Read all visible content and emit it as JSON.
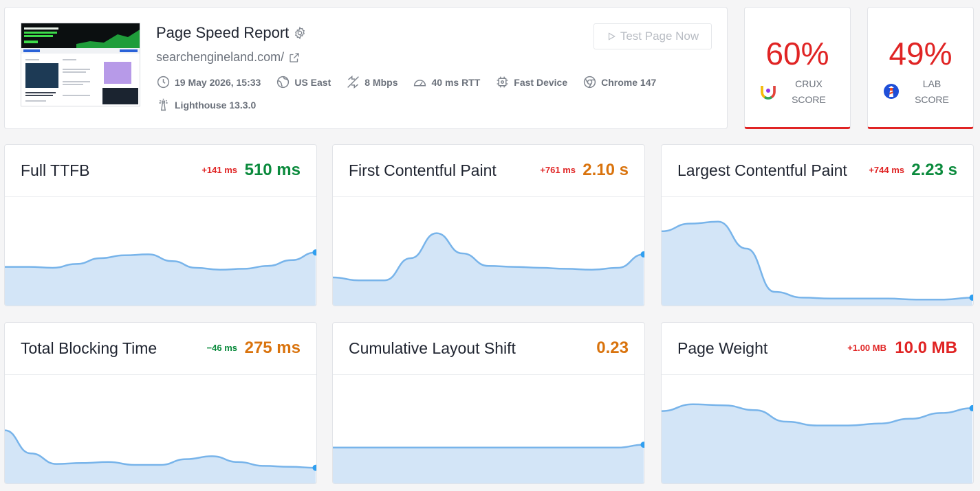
{
  "report": {
    "title": "Page Speed Report",
    "url": "searchengineland.com/",
    "test_button_label": "Test Page Now",
    "meta": [
      {
        "icon": "clock-icon",
        "text": "19 May 2026, 15:33"
      },
      {
        "icon": "globe-icon",
        "text": "US East"
      },
      {
        "icon": "bandwidth-icon",
        "text": "8 Mbps"
      },
      {
        "icon": "speedometer-icon",
        "text": "40 ms RTT"
      },
      {
        "icon": "cpu-icon",
        "text": "Fast Device"
      },
      {
        "icon": "chrome-icon",
        "text": "Chrome 147"
      },
      {
        "icon": "lighthouse-icon",
        "text": "Lighthouse 13.3.0"
      }
    ]
  },
  "scores": {
    "crux": {
      "value": "60%",
      "label_line1": "CRUX",
      "label_line2": "SCORE",
      "color": "#e02424"
    },
    "lab": {
      "value": "49%",
      "label_line1": "LAB",
      "label_line2": "SCORE",
      "color": "#e02424"
    }
  },
  "metrics": [
    {
      "title": "Full TTFB",
      "delta": "+141 ms",
      "value": "510 ms",
      "status": "good",
      "trend": [
        0.41,
        0.41,
        0.4,
        0.44,
        0.5,
        0.53,
        0.54,
        0.47,
        0.4,
        0.38,
        0.39,
        0.42,
        0.48,
        0.56
      ]
    },
    {
      "title": "First Contentful Paint",
      "delta": "+761 ms",
      "value": "2.10 s",
      "status": "needs-improvement",
      "trend": [
        0.3,
        0.27,
        0.27,
        0.5,
        0.76,
        0.55,
        0.42,
        0.41,
        0.4,
        0.39,
        0.38,
        0.4,
        0.54
      ]
    },
    {
      "title": "Largest Contentful Paint",
      "delta": "+744 ms",
      "value": "2.23 s",
      "status": "good",
      "trend": [
        0.78,
        0.86,
        0.88,
        0.6,
        0.15,
        0.09,
        0.08,
        0.08,
        0.08,
        0.07,
        0.07,
        0.09
      ]
    },
    {
      "title": "Total Blocking Time",
      "delta": "−46 ms",
      "value": "275 ms",
      "status": "needs-improvement",
      "trend": [
        0.56,
        0.32,
        0.21,
        0.22,
        0.23,
        0.2,
        0.2,
        0.26,
        0.29,
        0.23,
        0.19,
        0.18,
        0.17
      ]
    },
    {
      "title": "Cumulative Layout Shift",
      "delta": "",
      "value": "0.23",
      "status": "needs-improvement",
      "trend": [
        0.38,
        0.38,
        0.38,
        0.38,
        0.38,
        0.38,
        0.38,
        0.38,
        0.38,
        0.38,
        0.38,
        0.38,
        0.41
      ]
    },
    {
      "title": "Page Weight",
      "delta": "+1.00 MB",
      "value": "10.0 MB",
      "status": "poor",
      "trend": [
        0.76,
        0.83,
        0.82,
        0.77,
        0.65,
        0.61,
        0.61,
        0.63,
        0.68,
        0.74,
        0.79
      ]
    }
  ],
  "colors": {
    "good": "#0a8a3c",
    "needs-improvement": "#d9730d",
    "poor": "#e02424",
    "delta-up": "#e02424",
    "delta-down": "#0a8a3c",
    "chart-line": "#78b4ea",
    "chart-fill": "#d3e5f7",
    "chart-dot": "#2f9ff0"
  }
}
